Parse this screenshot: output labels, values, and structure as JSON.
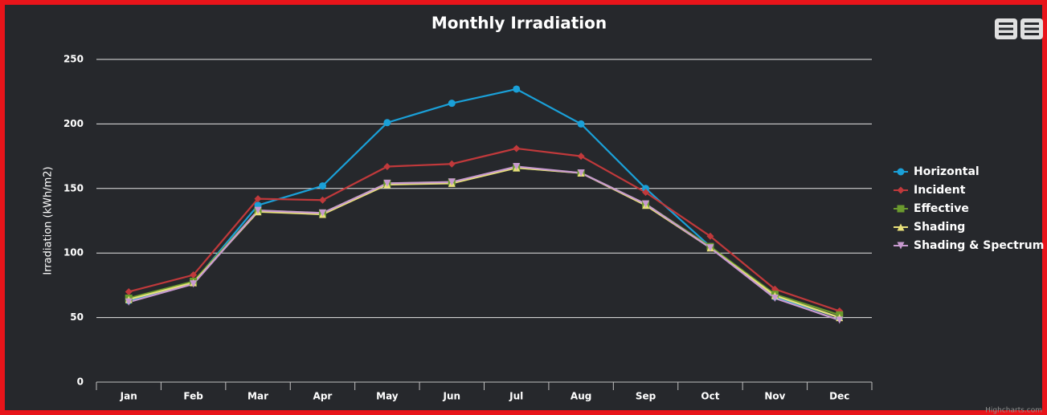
{
  "chart_data": {
    "type": "line",
    "title": "Monthly Irradiation",
    "y_label": "Irradiation (kWh/m2)",
    "credits": "Highcharts.com",
    "categories": [
      "Jan",
      "Feb",
      "Mar",
      "Apr",
      "May",
      "Jun",
      "Jul",
      "Aug",
      "Sep",
      "Oct",
      "Nov",
      "Dec"
    ],
    "series": [
      {
        "name": "Horizontal",
        "color": "#1aa0d8",
        "marker": "circle",
        "values": [
          63,
          77,
          137,
          152,
          201,
          216,
          227,
          200,
          150,
          105,
          66,
          50
        ]
      },
      {
        "name": "Incident",
        "color": "#c0393b",
        "marker": "diamond",
        "values": [
          70,
          83,
          142,
          141,
          167,
          169,
          181,
          175,
          147,
          113,
          72,
          55
        ]
      },
      {
        "name": "Effective",
        "color": "#6b9a2e",
        "marker": "square",
        "values": [
          65,
          78,
          133,
          131,
          154,
          155,
          166,
          162,
          138,
          105,
          68,
          52
        ]
      },
      {
        "name": "Shading",
        "color": "#e8e07a",
        "marker": "triangle",
        "values": [
          64,
          77,
          132,
          130,
          153,
          154,
          166,
          162,
          137,
          104,
          67,
          50
        ]
      },
      {
        "name": "Shading & Spectrum",
        "color": "#c89ad0",
        "marker": "triangle-down",
        "values": [
          62,
          76,
          133,
          131,
          154,
          155,
          167,
          162,
          138,
          104,
          65,
          48
        ]
      }
    ],
    "ylim": [
      0,
      250
    ],
    "yticks": [
      0,
      50,
      100,
      150,
      200,
      250
    ],
    "grid": true,
    "legend": "right"
  }
}
